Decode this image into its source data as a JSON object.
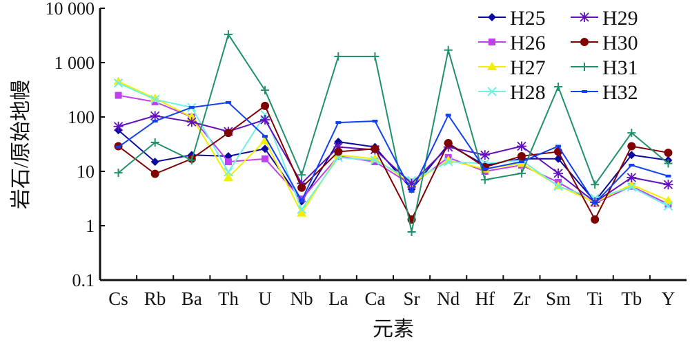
{
  "chart_data": {
    "type": "line",
    "title": "",
    "xlabel": "元素",
    "ylabel": "岩石/原始地幔",
    "yscale": "log",
    "ylim": [
      0.1,
      10000
    ],
    "yticks": [
      0.1,
      1,
      10,
      100,
      1000,
      10000
    ],
    "ytick_labels": [
      "0.1",
      "1",
      "10",
      "100",
      "1 000",
      "10 000"
    ],
    "categories": [
      "Cs",
      "Rb",
      "Ba",
      "Th",
      "U",
      "Nb",
      "La",
      "Ca",
      "Sr",
      "Nd",
      "Hf",
      "Zr",
      "Sm",
      "Ti",
      "Tb",
      "Y"
    ],
    "legend_position": "top-right",
    "series": [
      {
        "name": "H25",
        "color": "#0a0aa0",
        "marker": "diamond",
        "values": [
          57,
          15,
          20,
          19,
          26,
          2.8,
          35,
          28,
          4.7,
          31,
          13,
          17,
          17,
          2.8,
          20,
          16
        ]
      },
      {
        "name": "H26",
        "color": "#c040f0",
        "marker": "square",
        "values": [
          250,
          190,
          100,
          15,
          17,
          3.1,
          19,
          15,
          5.6,
          18,
          10,
          13,
          6.3,
          2.6,
          5.3,
          2.5
        ]
      },
      {
        "name": "H27",
        "color": "#f0f000",
        "marker": "triangle",
        "values": [
          450,
          220,
          100,
          7.7,
          37,
          1.7,
          20,
          17,
          6,
          16,
          11,
          14,
          5.4,
          2.7,
          5.7,
          2.9
        ]
      },
      {
        "name": "H28",
        "color": "#70f0e0",
        "marker": "x",
        "values": [
          420,
          210,
          150,
          9.7,
          110,
          2,
          18,
          16,
          6.8,
          15,
          14,
          16,
          5.3,
          3.2,
          5.1,
          2.3
        ]
      },
      {
        "name": "H29",
        "color": "#6010c0",
        "marker": "star",
        "values": [
          67,
          105,
          81,
          54,
          89,
          6,
          28,
          25,
          6,
          28,
          20,
          29,
          9.2,
          2.7,
          7.7,
          5.7
        ]
      },
      {
        "name": "H30",
        "color": "#800000",
        "marker": "circle",
        "values": [
          29,
          9,
          17,
          51,
          160,
          5,
          23,
          26,
          1.3,
          33,
          12,
          19,
          23,
          1.3,
          29,
          22
        ]
      },
      {
        "name": "H31",
        "color": "#20906a",
        "marker": "plus",
        "values": [
          9.4,
          34,
          16,
          3300,
          310,
          8.6,
          1300,
          1300,
          0.77,
          1700,
          7,
          9.2,
          360,
          5.7,
          51,
          14
        ]
      },
      {
        "name": "H32",
        "color": "#1040f0",
        "marker": "dash",
        "values": [
          28,
          84,
          150,
          185,
          44,
          2.9,
          79,
          84,
          4.3,
          108,
          11,
          15,
          29,
          2.6,
          13,
          8.2
        ]
      }
    ]
  }
}
